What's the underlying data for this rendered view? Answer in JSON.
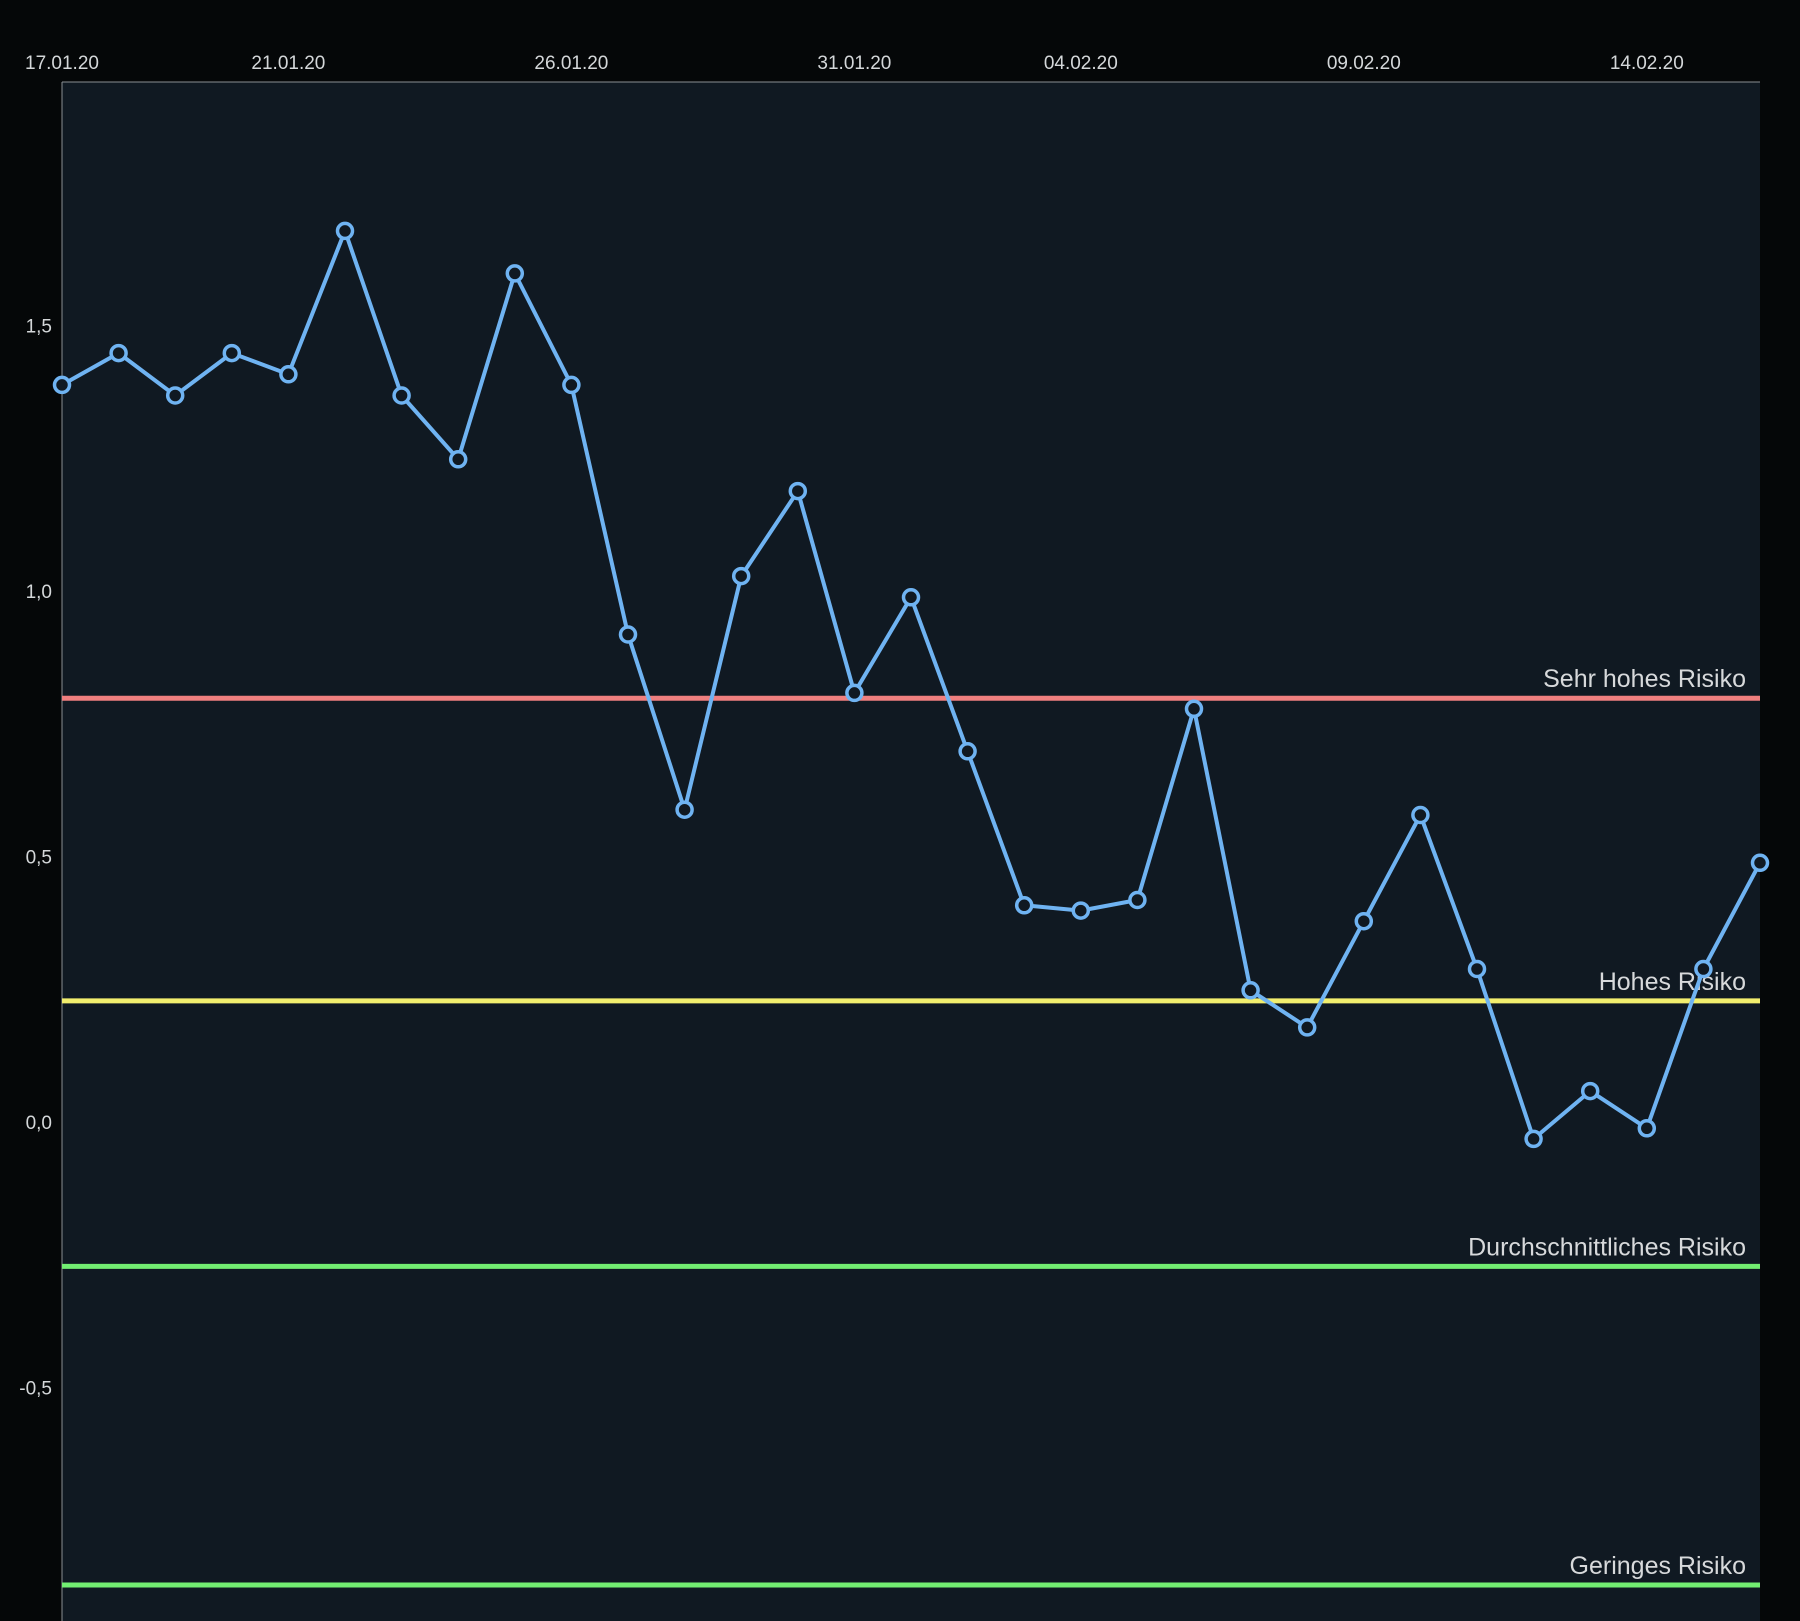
{
  "chart_data": {
    "type": "line",
    "x_axis_position": "top",
    "x_tick_labels": [
      "17.01.20",
      "21.01.20",
      "26.01.20",
      "31.01.20",
      "04.02.20",
      "09.02.20",
      "14.02.20"
    ],
    "y_tick_labels": [
      "1,5",
      "1,0",
      "0,5",
      "0,0",
      "-0,5"
    ],
    "ylim": [
      -0.93,
      1.96
    ],
    "grid": false,
    "series": [
      {
        "color": "#6fb3f2",
        "x": [
          "17.01.20",
          "18.01.20",
          "19.01.20",
          "20.01.20",
          "21.01.20",
          "22.01.20",
          "23.01.20",
          "24.01.20",
          "25.01.20",
          "26.01.20",
          "27.01.20",
          "28.01.20",
          "29.01.20",
          "30.01.20",
          "31.01.20",
          "01.02.20",
          "02.02.20",
          "03.02.20",
          "04.02.20",
          "05.02.20",
          "06.02.20",
          "07.02.20",
          "08.02.20",
          "09.02.20",
          "10.02.20",
          "11.02.20",
          "12.02.20",
          "13.02.20",
          "14.02.20",
          "15.02.20",
          "16.02.20"
        ],
        "values": [
          1.39,
          1.45,
          1.37,
          1.45,
          1.41,
          1.68,
          1.37,
          1.25,
          1.6,
          1.39,
          0.92,
          0.59,
          1.03,
          1.19,
          0.81,
          0.99,
          0.7,
          0.41,
          0.4,
          0.42,
          0.78,
          0.25,
          0.18,
          0.38,
          0.58,
          0.29,
          -0.03,
          0.06,
          -0.01,
          0.29,
          0.49
        ]
      }
    ],
    "reference_lines": [
      {
        "label": "Sehr hohes Risiko",
        "value": 0.8,
        "color": "#ef7f7f"
      },
      {
        "label": "Hohes Risiko",
        "value": 0.23,
        "color": "#f2ee6e"
      },
      {
        "label": "Durchschnittliches Risiko",
        "value": -0.27,
        "color": "#72ee72"
      },
      {
        "label": "Geringes Risiko",
        "value": -0.87,
        "color": "#72ee72"
      }
    ],
    "colors": {
      "page_background": "#050708",
      "plot_background": "#101922",
      "axis_line": "#8a8f93",
      "tick_text": "#d4d7d9",
      "marker_fill": "#101922"
    }
  }
}
